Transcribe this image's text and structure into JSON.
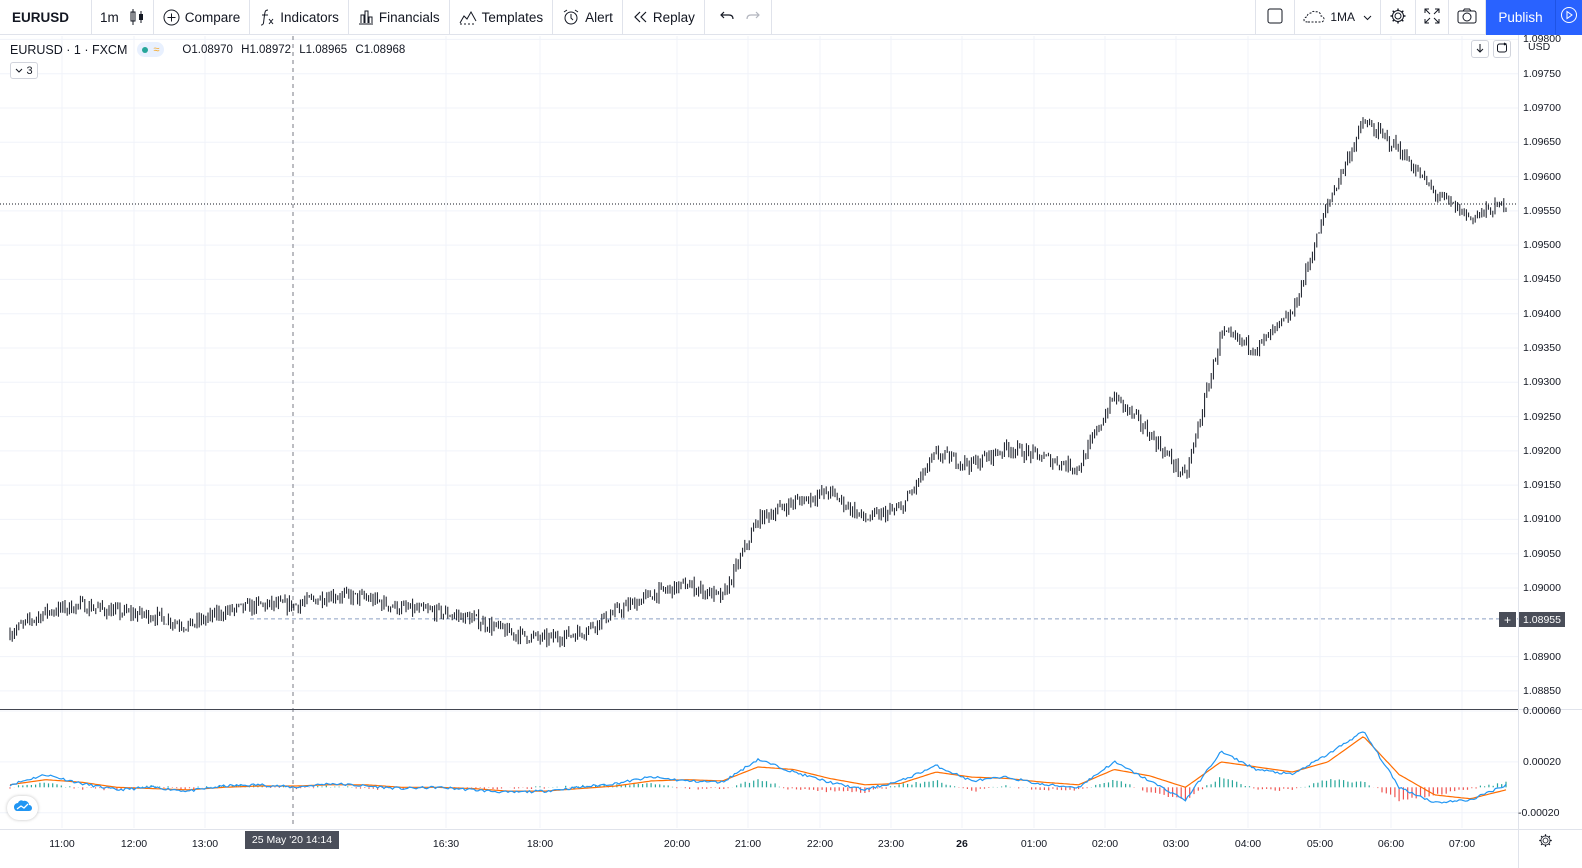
{
  "toolbar": {
    "symbol": "EURUSD",
    "interval": "1m",
    "compare_label": "Compare",
    "indicators_label": "Indicators",
    "financials_label": "Financials",
    "templates_label": "Templates",
    "alert_label": "Alert",
    "replay_label": "Replay",
    "layout_label": "1MA",
    "publish_label": "Publish"
  },
  "legend": {
    "title": "EURUSD · 1 · FXCM",
    "open": "O1.08970",
    "high": "H1.08972",
    "low": "L1.08965",
    "close": "C1.08968",
    "collapsed_count": "3"
  },
  "price_axis": {
    "currency": "USD",
    "current_price": "1.08955"
  },
  "crosshair": {
    "time_label": "25 May '20    14:14"
  },
  "colors": {
    "accent": "#2962ff",
    "candle": "#131722",
    "macd_line": "#2196f3",
    "signal_line": "#ff6d00",
    "hist_up": "#26a69a",
    "hist_down": "#ef5350",
    "grid": "#f0f3fa"
  },
  "chart_data": [
    {
      "type": "line",
      "title": "",
      "series": [
        {
          "name": "",
          "x": [
            "10:30",
            "11:00",
            "11:30",
            "12:00",
            "12:30",
            "13:00",
            "13:30",
            "14:00",
            "14:30",
            "15:00",
            "15:30",
            "16:00",
            "16:30",
            "17:00",
            "17:30",
            "18:00",
            "18:30",
            "19:00",
            "19:30",
            "20:00",
            "20:30",
            "21:00",
            "21:30",
            "22:00",
            "22:30",
            "23:00",
            "23:30",
            "26",
            "00:30",
            "01:00",
            "01:30",
            "02:00",
            "02:30",
            "03:00",
            "03:30",
            "04:00",
            "04:30",
            "05:00",
            "05:30",
            "06:00",
            "06:30",
            "07:00",
            "07:30"
          ],
          "values": [
            1.08935,
            1.08965,
            1.08975,
            1.08965,
            1.0896,
            1.08945,
            1.08965,
            1.08975,
            1.08975,
            1.0899,
            1.08985,
            1.0897,
            1.08965,
            1.08955,
            1.08935,
            1.08925,
            1.08935,
            1.08965,
            1.0899,
            1.09005,
            1.08985,
            1.091,
            1.09125,
            1.0914,
            1.091,
            1.09115,
            1.09195,
            1.0918,
            1.09205,
            1.0919,
            1.09175,
            1.0928,
            1.09225,
            1.0916,
            1.0937,
            1.0935,
            1.094,
            1.0956,
            1.0968,
            1.0964,
            1.09575,
            1.0954,
            1.0956
          ]
        }
      ],
      "x_ticks": [
        "11:00",
        "12:00",
        "13:00",
        "16:30",
        "18:00",
        "20:00",
        "21:00",
        "22:00",
        "23:00",
        "26",
        "01:00",
        "02:00",
        "03:00",
        "04:00",
        "05:00",
        "06:00",
        "07:00"
      ],
      "y_ticks": [
        "1.09800",
        "1.09750",
        "1.09700",
        "1.09650",
        "1.09600",
        "1.09550",
        "1.09500",
        "1.09450",
        "1.09400",
        "1.09350",
        "1.09300",
        "1.09250",
        "1.09200",
        "1.09150",
        "1.09100",
        "1.09050",
        "1.09000",
        "1.08955",
        "1.08900",
        "1.08850"
      ],
      "ylim": [
        1.08825,
        1.09805
      ],
      "grid": true
    },
    {
      "type": "line",
      "title": "",
      "series": [
        {
          "name": "",
          "x": [
            "10:30",
            "11:00",
            "11:30",
            "12:00",
            "12:30",
            "13:00",
            "13:30",
            "14:00",
            "14:30",
            "15:00",
            "15:30",
            "16:00",
            "16:30",
            "17:00",
            "17:30",
            "18:00",
            "18:30",
            "19:00",
            "19:30",
            "20:00",
            "20:30",
            "21:00",
            "21:30",
            "22:00",
            "22:30",
            "23:00",
            "23:30",
            "26",
            "00:30",
            "01:00",
            "01:30",
            "02:00",
            "02:30",
            "03:00",
            "03:30",
            "04:00",
            "04:30",
            "05:00",
            "05:30",
            "06:00",
            "06:30",
            "07:00",
            "07:30"
          ],
          "values": [
            2e-05,
            0.0001,
            3e-05,
            -2e-05,
            0.0,
            -3e-05,
            1e-05,
            2e-05,
            0.0,
            3e-05,
            1e-05,
            -1e-05,
            0.0,
            -2e-05,
            -4e-05,
            -3e-05,
            0.0,
            3e-05,
            8e-05,
            5e-05,
            4e-05,
            0.00022,
            0.00012,
            4e-05,
            -2e-05,
            5e-05,
            0.00017,
            5e-05,
            8e-05,
            2e-05,
            0.0,
            0.0002,
            5e-05,
            -0.0001,
            0.00028,
            0.00014,
            0.0001,
            0.00026,
            0.00044,
            0.0,
            -0.00012,
            -0.0001,
            2e-05
          ]
        },
        {
          "name": "",
          "x": [
            "10:30",
            "11:00",
            "11:30",
            "12:00",
            "12:30",
            "13:00",
            "13:30",
            "14:00",
            "14:30",
            "15:00",
            "15:30",
            "16:00",
            "16:30",
            "17:00",
            "17:30",
            "18:00",
            "18:30",
            "19:00",
            "19:30",
            "20:00",
            "20:30",
            "21:00",
            "21:30",
            "22:00",
            "22:30",
            "23:00",
            "23:30",
            "26",
            "00:30",
            "01:00",
            "01:30",
            "02:00",
            "02:30",
            "03:00",
            "03:30",
            "04:00",
            "04:30",
            "05:00",
            "05:30",
            "06:00",
            "06:30",
            "07:00",
            "07:30"
          ],
          "values": [
            2e-05,
            6e-05,
            4e-05,
            0.0,
            -1e-05,
            -2e-05,
            0.0,
            1e-05,
            1e-05,
            2e-05,
            2e-05,
            0.0,
            0.0,
            -1e-05,
            -3e-05,
            -3e-05,
            -1e-05,
            1e-05,
            5e-05,
            6e-05,
            5e-05,
            0.00016,
            0.00014,
            7e-05,
            2e-05,
            3e-05,
            0.00012,
            8e-05,
            7e-05,
            4e-05,
            2e-05,
            0.00014,
            9e-05,
            0.0,
            0.0002,
            0.00016,
            0.00012,
            0.0002,
            0.0004,
            0.0001,
            -6e-05,
            -9e-05,
            -2e-05
          ]
        }
      ],
      "y_ticks": [
        "0.00060",
        "0.00020",
        "-0.00020"
      ],
      "ylim": [
        -0.00032,
        0.0006
      ],
      "grid": true
    }
  ]
}
